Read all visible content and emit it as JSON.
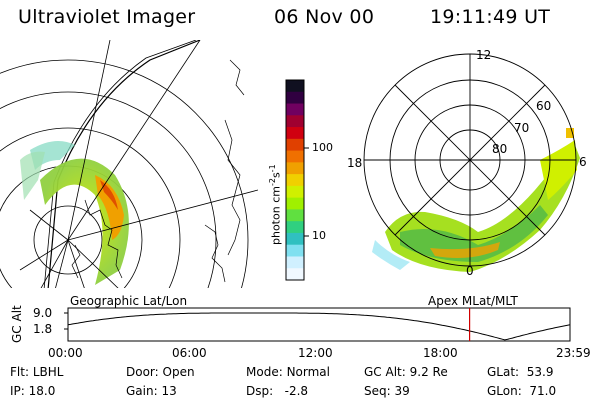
{
  "header": {
    "title": "Ultraviolet Imager",
    "date": "06 Nov 00",
    "time": "19:11:49 UT"
  },
  "colorbar": {
    "label": "photon cm",
    "label_exp1": "-2",
    "label_mid": "s",
    "label_exp2": "-1",
    "tick_100": "100",
    "tick_10": "10",
    "colors": [
      "#101020",
      "#300040",
      "#700060",
      "#a00030",
      "#d00010",
      "#e04000",
      "#f07000",
      "#f0a000",
      "#f0d000",
      "#d0f000",
      "#a0f000",
      "#60e040",
      "#30d080",
      "#30c0c0",
      "#80e0f0",
      "#d0f0ff",
      "#f0f8ff"
    ]
  },
  "polar": {
    "labels": [
      "12",
      "60",
      "70",
      "80",
      "18",
      "6",
      "0"
    ]
  },
  "timeline": {
    "left_title": "Geographic Lat/Lon",
    "right_title": "Apex MLat/MLT",
    "ylabel": "GC Alt",
    "ymax": "9.0",
    "ymin": "1.8",
    "ticks": [
      "00:00",
      "06:00",
      "12:00",
      "18:00",
      "23:59"
    ],
    "current_hour": 19.2
  },
  "info": {
    "flt_label": "Flt:",
    "flt_value": "LBHL",
    "ip_label": "IP:",
    "ip_value": "18.0",
    "door_label": "Door:",
    "door_value": "Open",
    "gain_label": "Gain:",
    "gain_value": "13",
    "mode_label": "Mode:",
    "mode_value": "Normal",
    "dsp_label": "Dsp:",
    "dsp_value": "-2.8",
    "gcalt_label": "GC Alt:",
    "gcalt_value": "9.2 Re",
    "seq_label": "Seq:",
    "seq_value": "39",
    "glat_label": "GLat:",
    "glat_value": "53.9",
    "glon_label": "GLon:",
    "glon_value": "71.0"
  }
}
